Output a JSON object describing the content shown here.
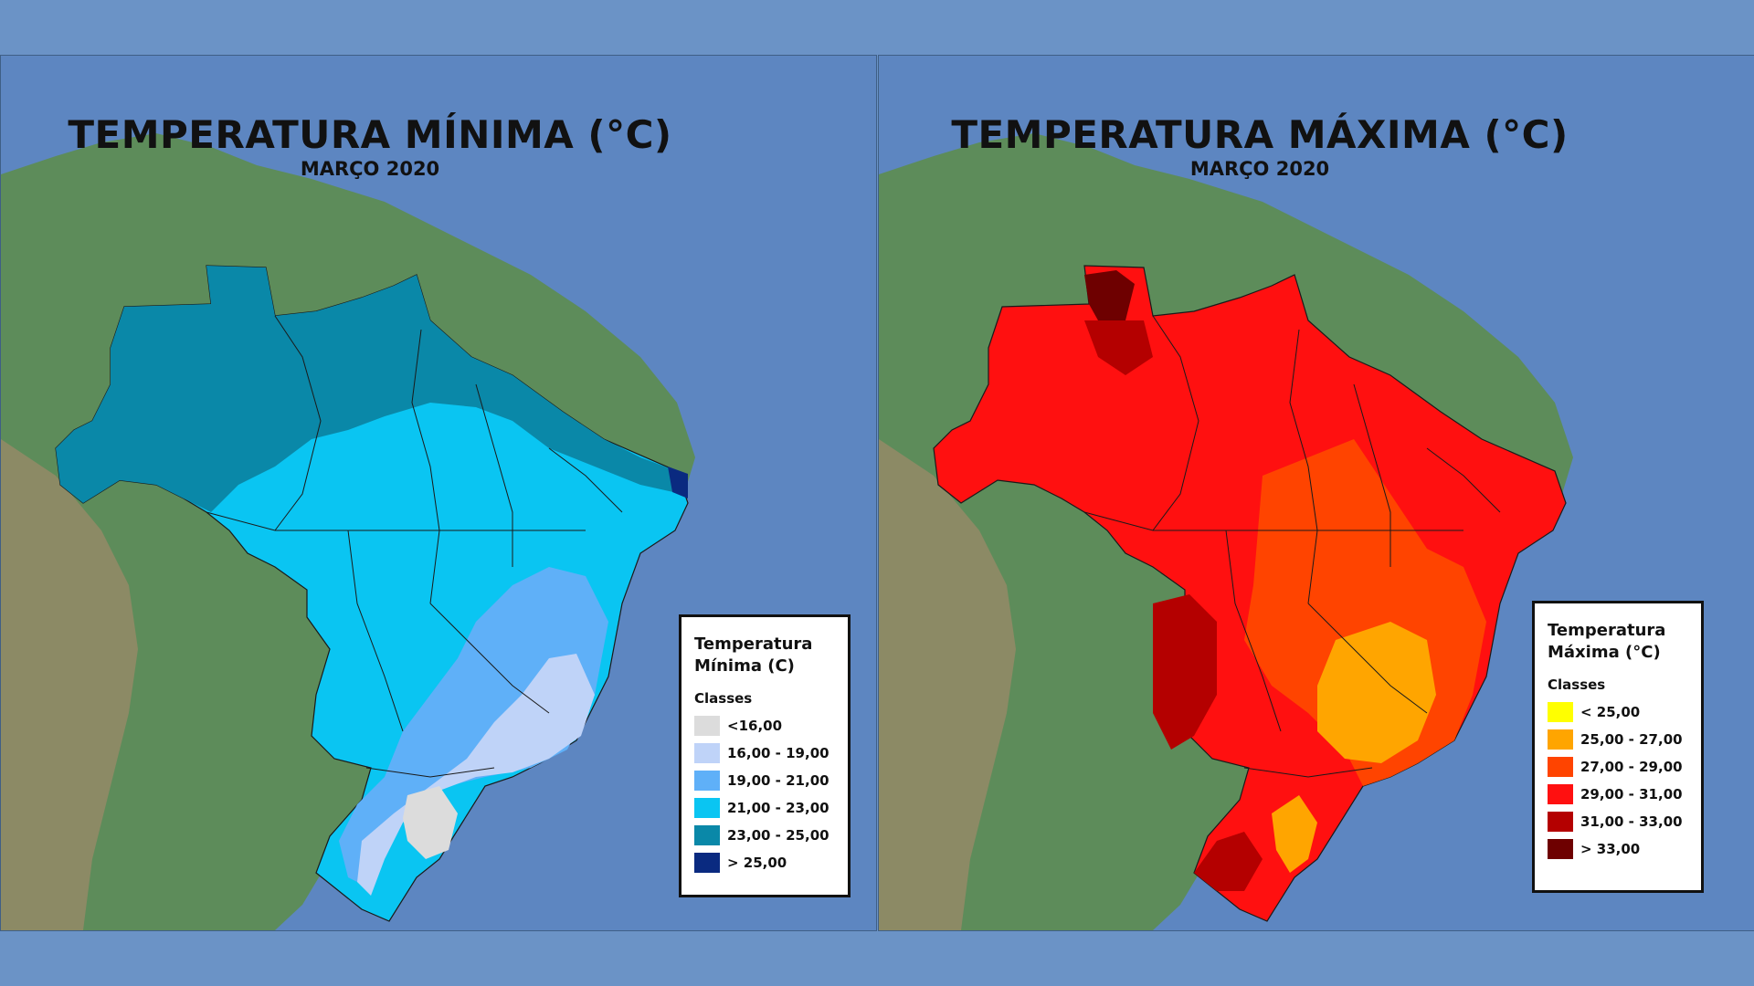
{
  "maps": {
    "min": {
      "title": "TEMPERATURA MÍNIMA (°C)",
      "subtitle": "MARÇO 2020",
      "legend": {
        "title_line1": "Temperatura",
        "title_line2": "Mínima (C)",
        "classes_label": "Classes",
        "items": [
          {
            "label": "<16,00",
            "color": "#dcdcdc"
          },
          {
            "label": "16,00 - 19,00",
            "color": "#bfd3f8"
          },
          {
            "label": "19,00 - 21,00",
            "color": "#5fb0f8"
          },
          {
            "label": "21,00 - 23,00",
            "color": "#0ac5f2"
          },
          {
            "label": "23,00 - 25,00",
            "color": "#0a88a8"
          },
          {
            "label": "> 25,00",
            "color": "#0a2a80"
          }
        ]
      }
    },
    "max": {
      "title": "TEMPERATURA MÁXIMA (°C)",
      "subtitle": "MARÇO 2020",
      "legend": {
        "title_line1": "Temperatura",
        "title_line2": "Máxima (°C)",
        "classes_label": "Classes",
        "items": [
          {
            "label": "< 25,00",
            "color": "#ffff00"
          },
          {
            "label": "25,00 - 27,00",
            "color": "#ffa500"
          },
          {
            "label": "27,00 - 29,00",
            "color": "#ff4400"
          },
          {
            "label": "29,00 - 31,00",
            "color": "#ff1010"
          },
          {
            "label": "31,00 - 33,00",
            "color": "#b40000"
          },
          {
            "label": "> 33,00",
            "color": "#6e0000"
          }
        ]
      }
    }
  }
}
